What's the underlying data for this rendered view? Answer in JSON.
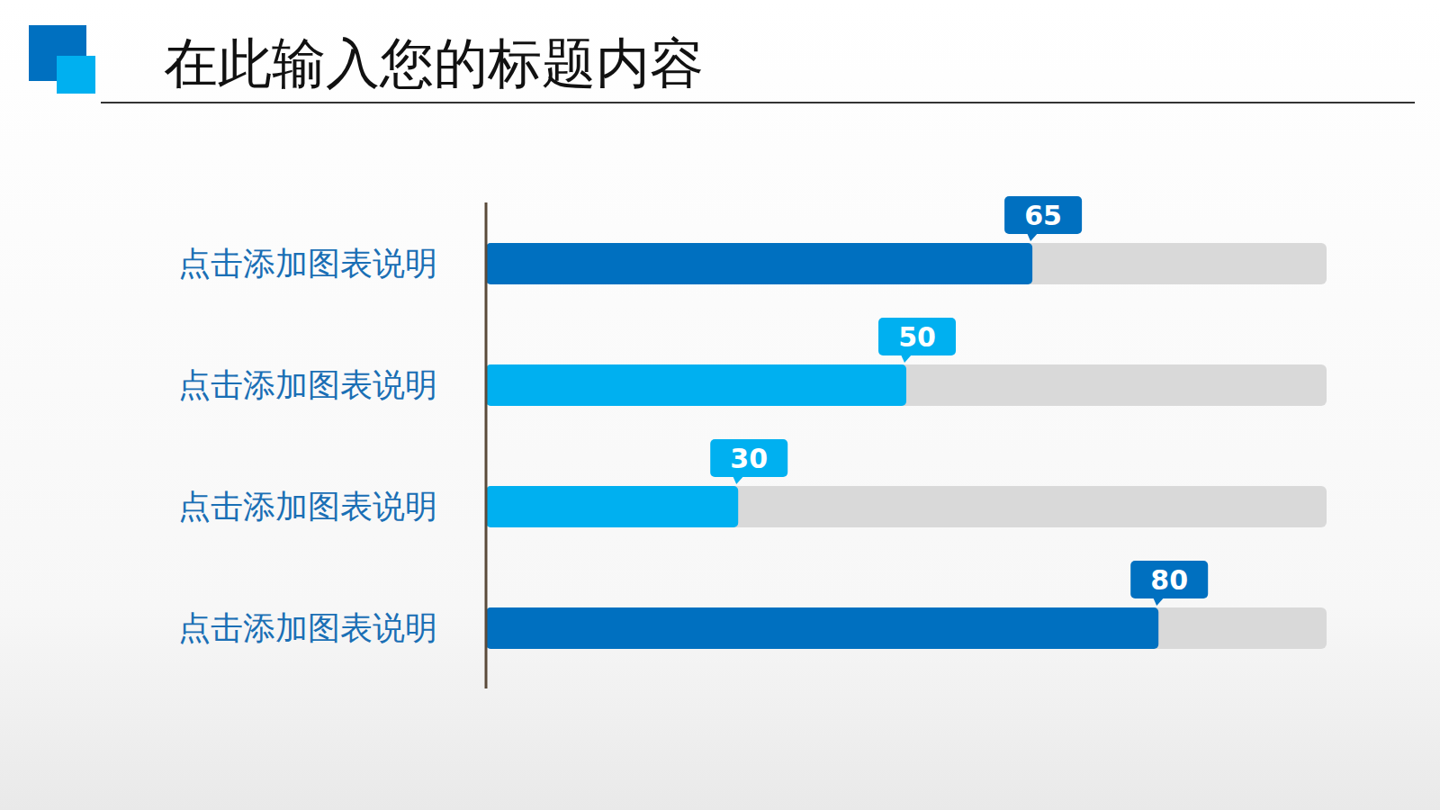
{
  "chart_data": {
    "type": "bar",
    "title": "在此输入您的标题内容",
    "orientation": "horizontal",
    "categories": [
      "点击添加图表说明",
      "点击添加图表说明",
      "点击添加图表说明",
      "点击添加图表说明"
    ],
    "values": [
      65,
      50,
      30,
      80
    ],
    "colors": [
      "#0070c0",
      "#00b0f0",
      "#00b0f0",
      "#0070c0"
    ],
    "xlim": [
      0,
      100
    ],
    "data_labels": true,
    "tick_labels": "y",
    "grid": false
  }
}
